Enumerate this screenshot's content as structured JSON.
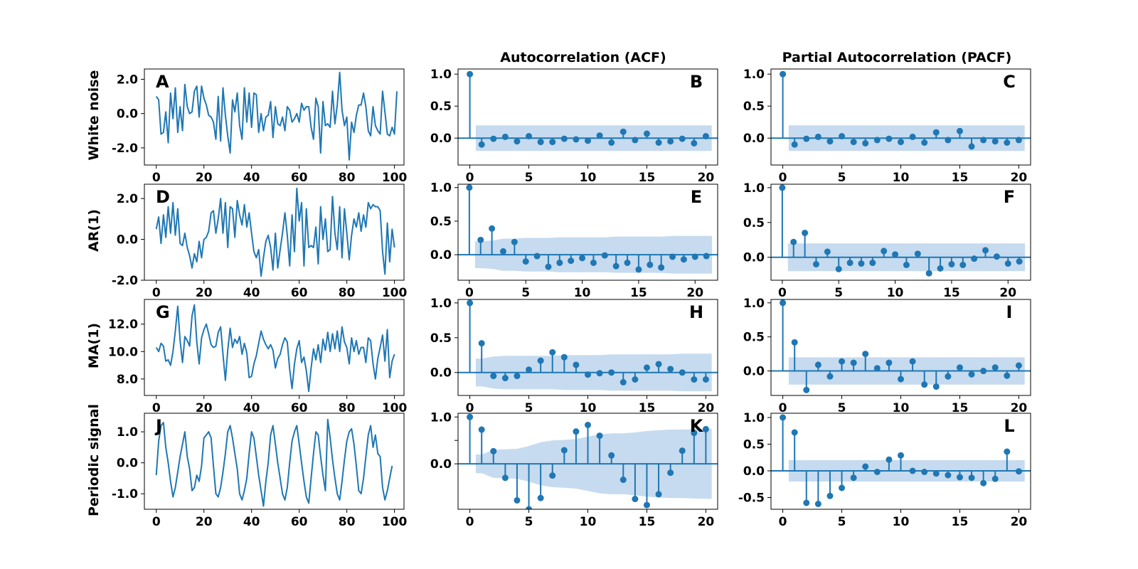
{
  "figure": {
    "column_titles": [
      "",
      "Autocorrelation (ACF)",
      "Partial Autocorrelation (PACF)"
    ],
    "row_labels": [
      "White noise",
      "AR(1)",
      "MA(1)",
      "Periodic signal"
    ],
    "series_color": "#1f77b4",
    "band_color": "#c6dbef"
  },
  "chart_data": [
    {
      "id": "A",
      "type": "line",
      "row": 0,
      "col": 0,
      "xlim": [
        -5,
        104
      ],
      "ylim": [
        -3.0,
        2.6
      ],
      "xticks": [
        0,
        20,
        40,
        60,
        80,
        100
      ],
      "xtick_labels": [
        "0",
        "20",
        "40",
        "60",
        "80",
        "100"
      ],
      "yticks": [
        -2.0,
        0.0,
        2.0
      ],
      "ytick_labels": [
        "-2.0",
        "0.0",
        "2.0"
      ],
      "x_start": 0,
      "values": [
        1.0,
        0.8,
        -1.2,
        -1.1,
        0.1,
        -1.7,
        1.2,
        -0.3,
        1.5,
        -1.1,
        0.4,
        -1.0,
        1.7,
        0.4,
        0.0,
        0.1,
        1.3,
        1.6,
        -0.2,
        1.6,
        0.9,
        0.5,
        -0.1,
        -0.2,
        -0.5,
        -1.5,
        1.0,
        -1.6,
        1.5,
        -0.1,
        -1.3,
        -2.3,
        0.8,
        0.1,
        1.2,
        -0.7,
        -1.5,
        1.5,
        -0.5,
        1.2,
        -0.8,
        1.2,
        1.1,
        -1.1,
        0.0,
        -1.0,
        -0.2,
        -0.1,
        0.7,
        -1.4,
        0.4,
        -0.6,
        -0.7,
        -0.2,
        -1.0,
        0.4,
        0.2,
        -0.5,
        -0.3,
        0.0,
        -0.5,
        0.6,
        0.2,
        0.4,
        0.4,
        -0.8,
        -1.5,
        0.9,
        0.4,
        -2.3,
        0.7,
        -0.7,
        -0.6,
        -0.8,
        1.3,
        -0.6,
        0.5,
        2.4,
        0.2,
        -0.7,
        -0.2,
        -2.7,
        -0.5,
        -1.1,
        -0.1,
        0.5,
        0.5,
        1.2,
        0.4,
        -1.0,
        -1.3,
        0.4,
        -0.7,
        -1.0,
        -1.2,
        1.3,
        0.1,
        -1.2,
        -1.3,
        -0.8,
        -1.2,
        1.3
      ]
    },
    {
      "id": "B",
      "type": "stem",
      "row": 0,
      "col": 1,
      "xlim": [
        -1,
        21
      ],
      "ylim": [
        -0.42,
        1.08
      ],
      "xticks": [
        0,
        5,
        10,
        15,
        20
      ],
      "xtick_labels": [
        "0",
        "5",
        "10",
        "15",
        "20"
      ],
      "yticks": [
        0.0,
        0.5,
        1.0
      ],
      "ytick_labels": [
        "0.0",
        "0.5",
        "1.0"
      ],
      "lags": [
        0,
        1,
        2,
        3,
        4,
        5,
        6,
        7,
        8,
        9,
        10,
        11,
        12,
        13,
        14,
        15,
        16,
        17,
        18,
        19,
        20
      ],
      "values": [
        1.0,
        -0.1,
        -0.01,
        0.02,
        -0.05,
        0.03,
        -0.06,
        -0.06,
        -0.01,
        -0.02,
        -0.04,
        0.04,
        -0.07,
        0.1,
        -0.03,
        0.07,
        -0.07,
        -0.05,
        -0.01,
        -0.08,
        0.03
      ],
      "band_upper": [
        0.2,
        0.2,
        0.2,
        0.2,
        0.2,
        0.2,
        0.2,
        0.2,
        0.2,
        0.2,
        0.2,
        0.2,
        0.2,
        0.2,
        0.2,
        0.2,
        0.2,
        0.2,
        0.2,
        0.2,
        0.2
      ],
      "band_start": 0.5,
      "band_end": 20.5
    },
    {
      "id": "C",
      "type": "stem",
      "row": 0,
      "col": 2,
      "xlim": [
        -1,
        21
      ],
      "ylim": [
        -0.42,
        1.08
      ],
      "xticks": [
        0,
        5,
        10,
        15,
        20
      ],
      "xtick_labels": [
        "0",
        "5",
        "10",
        "15",
        "20"
      ],
      "yticks": [
        0.0,
        0.5,
        1.0
      ],
      "ytick_labels": [
        "0.0",
        "0.5",
        "1.0"
      ],
      "lags": [
        0,
        1,
        2,
        3,
        4,
        5,
        6,
        7,
        8,
        9,
        10,
        11,
        12,
        13,
        14,
        15,
        16,
        17,
        18,
        19,
        20
      ],
      "values": [
        1.0,
        -0.1,
        -0.01,
        0.02,
        -0.05,
        0.03,
        -0.06,
        -0.08,
        -0.03,
        -0.01,
        -0.06,
        0.02,
        -0.07,
        0.09,
        -0.03,
        0.11,
        -0.13,
        -0.03,
        -0.05,
        -0.07,
        -0.03
      ],
      "band_upper": [
        0.2,
        0.2,
        0.2,
        0.2,
        0.2,
        0.2,
        0.2,
        0.2,
        0.2,
        0.2,
        0.2,
        0.2,
        0.2,
        0.2,
        0.2,
        0.2,
        0.2,
        0.2,
        0.2,
        0.2,
        0.2
      ],
      "band_start": 0.5,
      "band_end": 20.5
    },
    {
      "id": "D",
      "type": "line",
      "row": 1,
      "col": 0,
      "xlim": [
        -5,
        104
      ],
      "ylim": [
        -2.0,
        2.7
      ],
      "xticks": [
        0,
        20,
        40,
        60,
        80,
        100
      ],
      "xtick_labels": [
        "0",
        "20",
        "40",
        "60",
        "80",
        "100"
      ],
      "yticks": [
        -2.0,
        0.0,
        2.0
      ],
      "ytick_labels": [
        "-2.0",
        "0.0",
        "2.0"
      ],
      "x_start": 0,
      "values": [
        0.5,
        1.1,
        -0.2,
        1.2,
        0.1,
        1.6,
        0.3,
        1.8,
        0.2,
        1.5,
        -0.2,
        -0.3,
        0.3,
        -0.4,
        -0.8,
        -1.4,
        -0.7,
        -1.1,
        -0.1,
        -0.9,
        0.0,
        0.1,
        0.4,
        1.3,
        1.4,
        0.3,
        1.0,
        2.0,
        0.3,
        1.8,
        -0.4,
        1.6,
        1.5,
        0.1,
        1.9,
        1.2,
        0.7,
        1.7,
        0.6,
        1.3,
        0.3,
        -0.6,
        -0.9,
        -0.5,
        -1.8,
        -0.9,
        -0.1,
        0.2,
        -0.4,
        -1.5,
        0.3,
        -1.4,
        -0.5,
        0.3,
        1.3,
        0.2,
        -1.3,
        1.2,
        -0.6,
        2.5,
        0.9,
        1.8,
        -1.3,
        1.5,
        -0.4,
        -0.3,
        -0.4,
        0.6,
        -1.2,
        1.6,
        0.0,
        1.0,
        -0.6,
        -0.5,
        2.1,
        0.3,
        -0.5,
        1.6,
        -0.9,
        1.5,
        0.3,
        -1.0,
        0.2,
        1.0,
        0.6,
        1.3,
        0.4,
        1.2,
        0.6,
        1.8,
        1.5,
        1.7,
        1.6,
        1.6,
        1.4,
        -0.6,
        -1.7,
        0.8,
        -1.1,
        0.5,
        -0.4
      ]
    },
    {
      "id": "E",
      "type": "stem",
      "row": 1,
      "col": 1,
      "xlim": [
        -1,
        22
      ],
      "ylim": [
        -0.38,
        1.05
      ],
      "xticks": [
        0,
        5,
        10,
        15,
        20
      ],
      "xtick_labels": [
        "0",
        "5",
        "10",
        "15",
        "20"
      ],
      "yticks": [
        0.0,
        0.5,
        1.0
      ],
      "ytick_labels": [
        "0.0",
        "0.5",
        "1.0"
      ],
      "lags": [
        0,
        1,
        2,
        3,
        4,
        5,
        6,
        7,
        8,
        9,
        10,
        11,
        12,
        13,
        14,
        15,
        16,
        17,
        18,
        19,
        20,
        21
      ],
      "values": [
        1.0,
        0.22,
        0.39,
        0.05,
        0.19,
        -0.1,
        -0.02,
        -0.18,
        -0.12,
        -0.09,
        -0.05,
        -0.12,
        -0.01,
        -0.17,
        -0.12,
        -0.22,
        -0.15,
        -0.19,
        -0.03,
        -0.07,
        -0.03,
        -0.02
      ],
      "band_upper": [
        0.2,
        0.2,
        0.21,
        0.24,
        0.24,
        0.25,
        0.25,
        0.25,
        0.26,
        0.26,
        0.26,
        0.26,
        0.26,
        0.27,
        0.27,
        0.27,
        0.27,
        0.27,
        0.28,
        0.28,
        0.28,
        0.28
      ],
      "band_start": 0.5,
      "band_end": 21.5
    },
    {
      "id": "F",
      "type": "stem",
      "row": 1,
      "col": 2,
      "xlim": [
        -1,
        22
      ],
      "ylim": [
        -0.33,
        1.05
      ],
      "xticks": [
        0,
        5,
        10,
        15,
        20
      ],
      "xtick_labels": [
        "0",
        "5",
        "10",
        "15",
        "20"
      ],
      "yticks": [
        0.0,
        0.5,
        1.0
      ],
      "ytick_labels": [
        "0.0",
        "0.5",
        "1.0"
      ],
      "lags": [
        0,
        1,
        2,
        3,
        4,
        5,
        6,
        7,
        8,
        9,
        10,
        11,
        12,
        13,
        14,
        15,
        16,
        17,
        18,
        19,
        20,
        21
      ],
      "values": [
        1.0,
        0.22,
        0.35,
        -0.1,
        0.08,
        -0.17,
        -0.08,
        -0.09,
        -0.08,
        0.09,
        0.04,
        -0.11,
        0.05,
        -0.23,
        -0.16,
        -0.1,
        -0.11,
        -0.02,
        0.1,
        0.01,
        -0.09,
        -0.06
      ],
      "band_upper": [
        0.2,
        0.2,
        0.2,
        0.2,
        0.2,
        0.2,
        0.2,
        0.2,
        0.2,
        0.2,
        0.2,
        0.2,
        0.2,
        0.2,
        0.2,
        0.2,
        0.2,
        0.2,
        0.2,
        0.2,
        0.2,
        0.2
      ],
      "band_start": 0.5,
      "band_end": 21.5
    },
    {
      "id": "G",
      "type": "line",
      "row": 2,
      "col": 0,
      "xlim": [
        -5,
        104
      ],
      "ylim": [
        6.8,
        13.8
      ],
      "xticks": [
        0,
        20,
        40,
        60,
        80,
        100
      ],
      "xtick_labels": [
        "0",
        "20",
        "40",
        "60",
        "80",
        "100"
      ],
      "yticks": [
        8.0,
        10.0,
        12.0
      ],
      "ytick_labels": [
        "8.0",
        "10.0",
        "12.0"
      ],
      "x_start": 0,
      "values": [
        10.3,
        10.0,
        10.6,
        10.4,
        9.3,
        9.4,
        9.0,
        10.0,
        11.5,
        13.3,
        10.8,
        9.2,
        11.1,
        10.8,
        10.4,
        12.6,
        13.4,
        10.7,
        9.1,
        11.0,
        11.6,
        12.0,
        11.3,
        10.5,
        10.3,
        10.4,
        11.4,
        11.8,
        9.8,
        7.9,
        10.1,
        11.7,
        10.3,
        10.9,
        10.6,
        11.1,
        9.8,
        10.6,
        9.9,
        8.1,
        8.2,
        9.1,
        9.7,
        10.6,
        11.5,
        10.9,
        10.5,
        10.2,
        10.5,
        10.1,
        8.8,
        9.5,
        9.8,
        10.5,
        11.0,
        10.7,
        8.7,
        7.3,
        9.1,
        10.2,
        10.8,
        9.2,
        9.6,
        8.6,
        7.1,
        8.8,
        10.2,
        9.4,
        10.5,
        9.2,
        10.9,
        10.1,
        11.4,
        10.0,
        11.3,
        10.2,
        11.5,
        10.0,
        11.8,
        10.7,
        10.3,
        9.1,
        11.0,
        10.0,
        10.8,
        9.8,
        10.3,
        10.3,
        9.2,
        11.0,
        10.8,
        9.1,
        8.0,
        9.5,
        10.3,
        11.2,
        9.3,
        11.6,
        8.1,
        9.3,
        9.8
      ]
    },
    {
      "id": "H",
      "type": "stem",
      "row": 2,
      "col": 1,
      "xlim": [
        -1,
        21
      ],
      "ylim": [
        -0.33,
        1.05
      ],
      "xticks": [
        0,
        5,
        10,
        15,
        20
      ],
      "xtick_labels": [
        "0",
        "5",
        "10",
        "15",
        "20"
      ],
      "yticks": [
        0.0,
        0.5,
        1.0
      ],
      "ytick_labels": [
        "0.0",
        "0.5",
        "1.0"
      ],
      "lags": [
        0,
        1,
        2,
        3,
        4,
        5,
        6,
        7,
        8,
        9,
        10,
        11,
        12,
        13,
        14,
        15,
        16,
        17,
        18,
        19,
        20
      ],
      "values": [
        1.0,
        0.42,
        -0.05,
        -0.08,
        -0.05,
        0.04,
        0.17,
        0.29,
        0.22,
        0.11,
        -0.03,
        -0.01,
        0.0,
        -0.14,
        -0.1,
        0.07,
        0.12,
        0.05,
        0.0,
        -0.1,
        -0.1
      ],
      "band_upper": [
        0.2,
        0.2,
        0.23,
        0.24,
        0.24,
        0.24,
        0.24,
        0.24,
        0.25,
        0.25,
        0.25,
        0.25,
        0.26,
        0.26,
        0.26,
        0.26,
        0.26,
        0.26,
        0.27,
        0.27,
        0.27
      ],
      "band_start": 0.5,
      "band_end": 20.5
    },
    {
      "id": "I",
      "type": "stem",
      "row": 2,
      "col": 2,
      "xlim": [
        -1,
        21
      ],
      "ylim": [
        -0.36,
        1.05
      ],
      "xticks": [
        0,
        5,
        10,
        15,
        20
      ],
      "xtick_labels": [
        "0",
        "5",
        "10",
        "15",
        "20"
      ],
      "yticks": [
        0.0,
        0.5,
        1.0
      ],
      "ytick_labels": [
        "0.0",
        "0.5",
        "1.0"
      ],
      "lags": [
        0,
        1,
        2,
        3,
        4,
        5,
        6,
        7,
        8,
        9,
        10,
        11,
        12,
        13,
        14,
        15,
        16,
        17,
        18,
        19,
        20
      ],
      "values": [
        1.0,
        0.42,
        -0.28,
        0.09,
        -0.08,
        0.14,
        0.12,
        0.25,
        0.04,
        0.12,
        -0.12,
        0.14,
        -0.2,
        -0.23,
        -0.08,
        0.05,
        -0.05,
        0.0,
        0.05,
        -0.07,
        0.08
      ],
      "band_upper": [
        0.2,
        0.2,
        0.2,
        0.2,
        0.2,
        0.2,
        0.2,
        0.2,
        0.2,
        0.2,
        0.2,
        0.2,
        0.2,
        0.2,
        0.2,
        0.2,
        0.2,
        0.2,
        0.2,
        0.2,
        0.2
      ],
      "band_start": 0.5,
      "band_end": 20.5
    },
    {
      "id": "J",
      "type": "line",
      "row": 3,
      "col": 0,
      "xlim": [
        -5,
        104
      ],
      "ylim": [
        -1.5,
        1.6
      ],
      "xticks": [
        0,
        20,
        40,
        60,
        80,
        100
      ],
      "xtick_labels": [
        "0",
        "20",
        "40",
        "60",
        "80",
        "100"
      ],
      "yticks": [
        -1.0,
        0.0,
        1.0
      ],
      "ytick_labels": [
        "-1.0",
        "0.0",
        "1.0"
      ],
      "x_start": 0,
      "values": [
        -0.4,
        0.7,
        1.2,
        1.3,
        0.5,
        0.0,
        -0.6,
        -1.1,
        -0.8,
        -0.3,
        0.2,
        0.6,
        1.0,
        0.2,
        -0.2,
        -0.9,
        -0.8,
        -0.4,
        -0.6,
        -0.1,
        0.8,
        0.9,
        1.0,
        0.8,
        -0.1,
        -1.0,
        -1.1,
        -0.8,
        -0.3,
        0.3,
        1.0,
        1.2,
        0.8,
        0.3,
        -0.2,
        -1.0,
        -1.2,
        -0.9,
        -0.5,
        0.3,
        1.0,
        0.8,
        0.2,
        -0.4,
        -0.9,
        -1.4,
        -0.6,
        0.0,
        0.9,
        1.2,
        0.6,
        0.0,
        -0.5,
        -1.0,
        -1.2,
        -0.8,
        0.0,
        0.7,
        1.0,
        1.2,
        0.6,
        0.0,
        -0.6,
        -1.1,
        -1.3,
        -0.5,
        0.3,
        1.0,
        0.9,
        0.2,
        -0.4,
        -0.9,
        1.4,
        0.8,
        0.1,
        -0.5,
        -1.0,
        -1.2,
        -0.6,
        0.1,
        0.7,
        1.0,
        1.1,
        0.6,
        -0.1,
        -0.9,
        -1.0,
        -0.5,
        0.2,
        0.9,
        1.2,
        0.5,
        0.9,
        0.3,
        0.2,
        -0.8,
        -1.2,
        -0.9,
        -0.5,
        -0.1
      ]
    },
    {
      "id": "K",
      "type": "stem",
      "row": 3,
      "col": 1,
      "xlim": [
        -1,
        21
      ],
      "ylim": [
        -0.97,
        1.08
      ],
      "xticks": [
        0,
        5,
        10,
        15,
        20
      ],
      "xtick_labels": [
        "0",
        "5",
        "10",
        "15",
        "20"
      ],
      "yticks": [
        0.0,
        0.5,
        1.0
      ],
      "ytick_labels": [
        "0.0",
        "",
        "1.0"
      ],
      "lags": [
        0,
        1,
        2,
        3,
        4,
        5,
        6,
        7,
        8,
        9,
        10,
        11,
        12,
        13,
        14,
        15,
        16,
        17,
        18,
        19,
        20
      ],
      "values": [
        1.0,
        0.73,
        0.27,
        -0.3,
        -0.78,
        -0.97,
        -0.73,
        -0.25,
        0.29,
        0.69,
        0.83,
        0.6,
        0.18,
        -0.34,
        -0.75,
        -0.88,
        -0.65,
        -0.19,
        0.28,
        0.66,
        0.74
      ],
      "band_upper": [
        0.2,
        0.2,
        0.3,
        0.31,
        0.32,
        0.38,
        0.46,
        0.5,
        0.51,
        0.53,
        0.58,
        0.63,
        0.65,
        0.65,
        0.67,
        0.7,
        0.72,
        0.73,
        0.73,
        0.74,
        0.75
      ],
      "band_start": 0.5,
      "band_end": 20.5
    },
    {
      "id": "L",
      "type": "stem",
      "row": 3,
      "col": 2,
      "xlim": [
        -1,
        21
      ],
      "ylim": [
        -0.72,
        1.08
      ],
      "xticks": [
        0,
        5,
        10,
        15,
        20
      ],
      "xtick_labels": [
        "0",
        "5",
        "10",
        "15",
        "20"
      ],
      "yticks": [
        -0.5,
        0.0,
        0.5,
        1.0
      ],
      "ytick_labels": [
        "-0.5",
        "0.0",
        "0.5",
        "1.0"
      ],
      "lags": [
        0,
        1,
        2,
        3,
        4,
        5,
        6,
        7,
        8,
        9,
        10,
        11,
        12,
        13,
        14,
        15,
        16,
        17,
        18,
        19,
        20
      ],
      "values": [
        1.0,
        0.72,
        -0.6,
        -0.62,
        -0.47,
        -0.32,
        -0.13,
        0.08,
        -0.02,
        0.21,
        0.29,
        0.0,
        -0.02,
        -0.05,
        -0.08,
        -0.12,
        -0.13,
        -0.23,
        -0.15,
        0.36,
        -0.01
      ],
      "band_upper": [
        0.2,
        0.2,
        0.2,
        0.2,
        0.2,
        0.2,
        0.2,
        0.2,
        0.2,
        0.2,
        0.2,
        0.2,
        0.2,
        0.2,
        0.2,
        0.2,
        0.2,
        0.2,
        0.2,
        0.2,
        0.2
      ],
      "band_start": 0.5,
      "band_end": 20.5
    }
  ]
}
